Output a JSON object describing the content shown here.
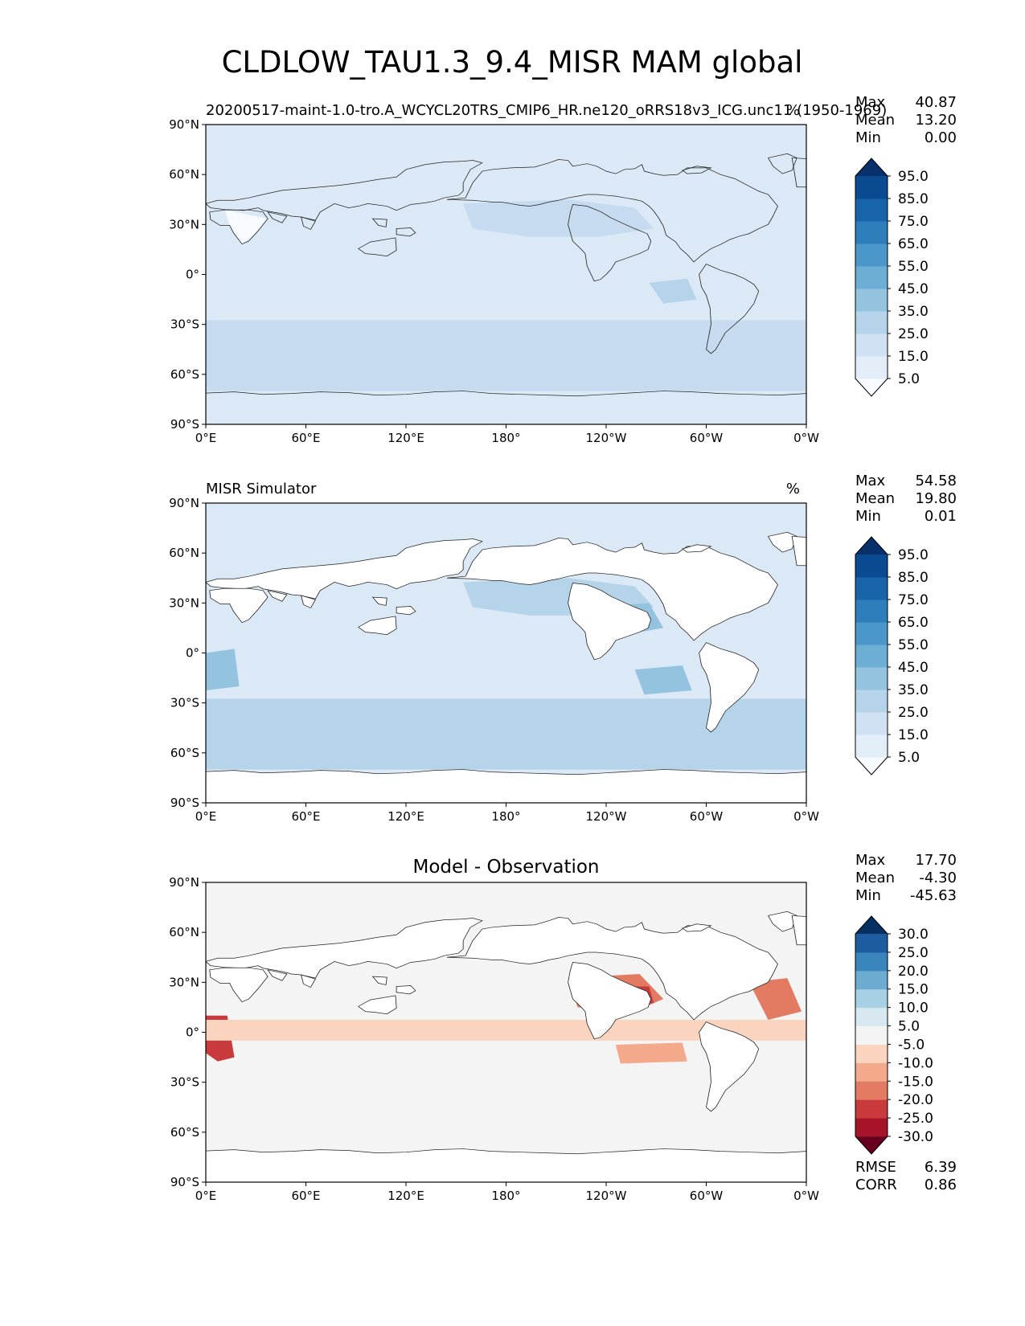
{
  "figure": {
    "title": "CLDLOW_TAU1.3_9.4_MISR MAM global"
  },
  "axes": {
    "lat_labels": [
      "90°N",
      "60°N",
      "30°N",
      "0°",
      "30°S",
      "60°S",
      "90°S"
    ],
    "lon_labels": [
      "0°E",
      "60°E",
      "120°E",
      "180°",
      "120°W",
      "60°W",
      "0°W"
    ]
  },
  "panels": [
    {
      "id": "test",
      "left_title": "20200517-maint-1.0-tro.A_WCYCL20TRS_CMIP6_HR.ne120_oRRS18v3_ICG.unc11 (1950-1969)",
      "center_title": "",
      "units": "%",
      "stats_labels": [
        "Max",
        "Mean",
        "Min"
      ],
      "stats_values": [
        "40.87",
        "13.20",
        "0.00"
      ],
      "colorbar": {
        "colors": [
          "#f7fbff",
          "#e3eef9",
          "#cfe1f2",
          "#b5d4e9",
          "#93c3df",
          "#6daed5",
          "#4b97c9",
          "#2f7ebc",
          "#1864aa",
          "#0a4a90",
          "#08306b"
        ],
        "ticks": [
          "5.0",
          "15.0",
          "25.0",
          "35.0",
          "45.0",
          "55.0",
          "65.0",
          "75.0",
          "85.0",
          "95.0"
        ]
      },
      "field": {
        "base_color": "#dbe9f6",
        "regions": [
          {
            "name": "southern-ocean-band",
            "color": "#c6dbef"
          },
          {
            "name": "north-pacific",
            "color": "#c6dbef"
          },
          {
            "name": "east-pacific-stratocumulus",
            "color": "#b5d4e9"
          },
          {
            "name": "subtropical-land",
            "color": "#f7fbff"
          }
        ]
      }
    },
    {
      "id": "reference",
      "left_title": "MISR Simulator",
      "center_title": "",
      "units": "%",
      "stats_labels": [
        "Max",
        "Mean",
        "Min"
      ],
      "stats_values": [
        "54.58",
        "19.80",
        "0.01"
      ],
      "colorbar": {
        "colors": [
          "#f7fbff",
          "#e3eef9",
          "#cfe1f2",
          "#b5d4e9",
          "#93c3df",
          "#6daed5",
          "#4b97c9",
          "#2f7ebc",
          "#1864aa",
          "#0a4a90",
          "#08306b"
        ],
        "ticks": [
          "5.0",
          "15.0",
          "25.0",
          "35.0",
          "45.0",
          "55.0",
          "65.0",
          "75.0",
          "85.0",
          "95.0"
        ]
      },
      "field": {
        "base_color": "#dbe9f6",
        "regions": [
          {
            "name": "southern-ocean-band",
            "color": "#b5d4e9"
          },
          {
            "name": "north-pacific",
            "color": "#b5d4e9"
          },
          {
            "name": "northeast-pacific-stratocumulus",
            "color": "#93c3df"
          },
          {
            "name": "southeast-pacific-stratocumulus",
            "color": "#93c3df"
          },
          {
            "name": "southeast-atlantic-stratocumulus",
            "color": "#93c3df"
          },
          {
            "name": "land-masked",
            "color": "#ffffff"
          }
        ]
      }
    },
    {
      "id": "diff",
      "left_title": "",
      "center_title": "Model - Observation",
      "units": "",
      "stats_labels": [
        "Max",
        "Mean",
        "Min"
      ],
      "stats_values": [
        "17.70",
        "-4.30",
        "-45.63"
      ],
      "colorbar": {
        "colors": [
          "#67001f",
          "#a51429",
          "#c93a3c",
          "#e27b62",
          "#f4a98a",
          "#fbd4c0",
          "#f4f4f4",
          "#d7e8f1",
          "#a8d0e4",
          "#6bacd0",
          "#3a85bc",
          "#1c5c9f",
          "#053061"
        ],
        "ticks": [
          "-30.0",
          "-25.0",
          "-20.0",
          "-15.0",
          "-10.0",
          "-5.0",
          "5.0",
          "10.0",
          "15.0",
          "20.0",
          "25.0",
          "30.0"
        ]
      },
      "field": {
        "base_color": "#f4f4f4",
        "regions": [
          {
            "name": "northeast-pacific-deficit",
            "color": "#e27b62"
          },
          {
            "name": "northeast-pacific-core",
            "color": "#c93a3c"
          },
          {
            "name": "southeast-atlantic-deficit",
            "color": "#c93a3c"
          },
          {
            "name": "north-atlantic-deficit",
            "color": "#e27b62"
          },
          {
            "name": "tropical-band-deficit",
            "color": "#fbd4c0"
          },
          {
            "name": "southeast-pacific-deficit",
            "color": "#f4a98a"
          }
        ]
      },
      "footer_labels": [
        "RMSE",
        "CORR"
      ],
      "footer_values": [
        "6.39",
        "0.86"
      ]
    }
  ]
}
